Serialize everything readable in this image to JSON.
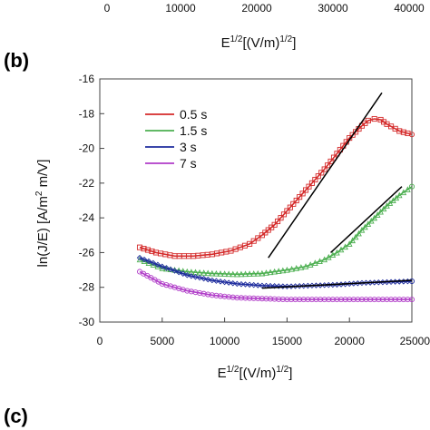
{
  "top_fragment": {
    "ticks": [
      "0",
      "10000",
      "20000",
      "30000",
      "40000"
    ],
    "xlabel_base": "E",
    "xlabel_sup": "1/2",
    "xlabel_mid": "[(V/m)",
    "xlabel_sup2": "1/2",
    "xlabel_end": "]"
  },
  "panel_b_label": "(b)",
  "panel_c_label": "(c)",
  "chart_data": {
    "type": "scatter",
    "xlim": [
      0,
      25000
    ],
    "ylim": [
      -30,
      -16
    ],
    "xticks": [
      0,
      5000,
      10000,
      15000,
      20000,
      25000
    ],
    "xtick_labels": [
      "0",
      "5000",
      "10000",
      "15000",
      "20000",
      "25000"
    ],
    "yticks": [
      -30,
      -28,
      -26,
      -24,
      -22,
      -20,
      -18,
      -16
    ],
    "ytick_labels": [
      "-30",
      "-28",
      "-26",
      "-24",
      "-22",
      "-20",
      "-18",
      "-16"
    ],
    "xlabel": {
      "base": "E",
      "sup": "1/2",
      "mid": "[(V/m)",
      "sup2": "1/2",
      "end": "]"
    },
    "ylabel": {
      "a": "ln(J/E) [A/m",
      "sup": "2",
      "b": " m/V]"
    },
    "grid": false,
    "legend_placement": "upper-left",
    "series": [
      {
        "name": "0.5 s",
        "color": "#d42a2a",
        "marker": "square",
        "x": [
          3200,
          4500,
          6000,
          7500,
          9000,
          10500,
          12000,
          13000,
          14000,
          15000,
          16000,
          17000,
          18000,
          19000,
          20000,
          21000,
          21500,
          22000,
          22500,
          23000,
          24000,
          25000
        ],
        "y": [
          -25.7,
          -26.0,
          -26.2,
          -26.2,
          -26.1,
          -25.9,
          -25.5,
          -25.0,
          -24.4,
          -23.6,
          -22.8,
          -22.0,
          -21.2,
          -20.3,
          -19.4,
          -18.7,
          -18.4,
          -18.3,
          -18.35,
          -18.6,
          -19.0,
          -19.2
        ]
      },
      {
        "name": "1.5 s",
        "color": "#4caf50",
        "marker": "triangle",
        "x": [
          3200,
          5000,
          7000,
          9000,
          11000,
          13000,
          15000,
          16500,
          18000,
          19000,
          20000,
          21000,
          22000,
          23000,
          24000,
          25000
        ],
        "y": [
          -26.4,
          -26.9,
          -27.1,
          -27.2,
          -27.25,
          -27.2,
          -27.0,
          -26.8,
          -26.4,
          -26.0,
          -25.5,
          -24.7,
          -24.0,
          -23.3,
          -22.7,
          -22.2
        ]
      },
      {
        "name": "3 s",
        "color": "#1f2d9e",
        "marker": "diamond",
        "x": [
          3200,
          5000,
          7000,
          9000,
          11000,
          13000,
          15000,
          17000,
          19000,
          21000,
          23000,
          25000
        ],
        "y": [
          -26.3,
          -26.8,
          -27.3,
          -27.6,
          -27.8,
          -27.9,
          -27.95,
          -27.9,
          -27.85,
          -27.75,
          -27.7,
          -27.65
        ]
      },
      {
        "name": "7 s",
        "color": "#b03cc8",
        "marker": "circle",
        "x": [
          3200,
          5000,
          7000,
          9000,
          11000,
          13000,
          15000,
          17000,
          19000,
          21000,
          23000,
          25000
        ],
        "y": [
          -27.1,
          -27.8,
          -28.2,
          -28.45,
          -28.6,
          -28.65,
          -28.7,
          -28.7,
          -28.7,
          -28.7,
          -28.7,
          -28.7
        ]
      }
    ],
    "fit_lines": [
      {
        "x": [
          13500,
          22600
        ],
        "y": [
          -26.3,
          -16.8
        ]
      },
      {
        "x": [
          18500,
          24200
        ],
        "y": [
          -26.0,
          -22.2
        ]
      },
      {
        "x": [
          13000,
          25000
        ],
        "y": [
          -28.05,
          -27.6
        ]
      }
    ]
  }
}
